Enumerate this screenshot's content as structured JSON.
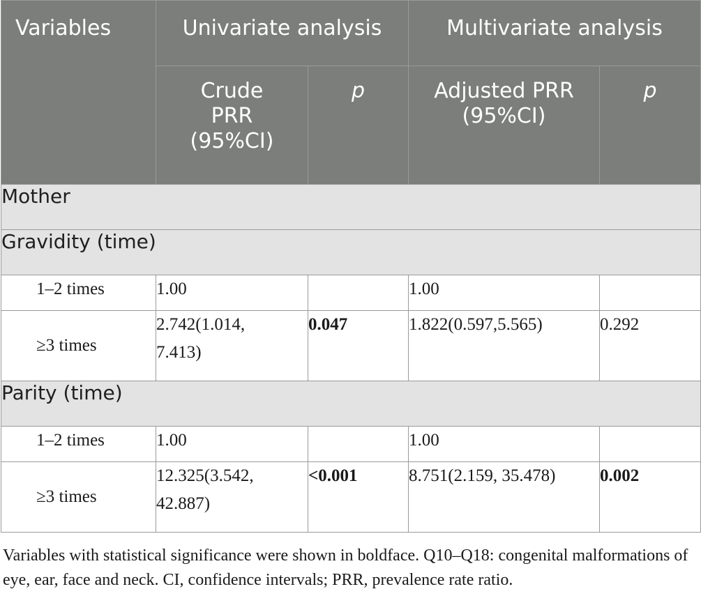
{
  "header": {
    "variables": "Variables",
    "univariate": "Univariate analysis",
    "multivariate": "Multivariate analysis",
    "crude_prr": "Crude PRR (95%CI)",
    "p1": "p",
    "adjusted_prr": "Adjusted PRR (95%CI)",
    "p2": "p"
  },
  "sections": {
    "mother": "Mother",
    "gravidity": "Gravidity (time)",
    "parity": "Parity (time)"
  },
  "gravidity_rows": [
    {
      "label": "1–2 times",
      "crude": "1.00",
      "p_uni": "",
      "adjusted": "1.00",
      "p_multi": ""
    },
    {
      "label": "≥3 times",
      "crude": "2.742(1.014, 7.413)",
      "p_uni": "0.047",
      "adjusted": "1.822(0.597,5.565)",
      "p_multi": "0.292"
    }
  ],
  "parity_rows": [
    {
      "label": "1–2 times",
      "crude": "1.00",
      "p_uni": "",
      "adjusted": "1.00",
      "p_multi": ""
    },
    {
      "label": "≥3 times",
      "crude": "12.325(3.542, 42.887)",
      "p_uni": "<0.001",
      "adjusted": "8.751(2.159, 35.478)",
      "p_multi": "0.002"
    }
  ],
  "footnote": "Variables with statistical significance were shown in boldface. Q10–Q18: congenital malformations of eye, ear, face and neck. CI, confidence intervals; PRR, prevalence rate ratio."
}
